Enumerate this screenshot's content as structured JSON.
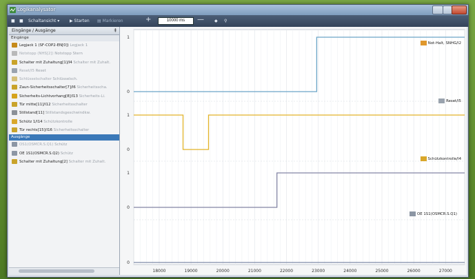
{
  "window": {
    "title": "Logikanalysator"
  },
  "toolbar": {
    "signal_menu": "Schaltansicht",
    "start_label": "Starten",
    "marker_label": "Markieren",
    "time_value": "10000 ms"
  },
  "sidebar": {
    "header": "Eingänge / Ausgänge",
    "groups": [
      {
        "label": "Eingänge",
        "items": [
          {
            "label": "Legjack 1 (SF-COP2-EN[0])",
            "sub": "Legjack 1",
            "icon": "warning-icon",
            "dim": false
          },
          {
            "label": "Notstopp (NHS[2])",
            "sub": "Notstopp Stern",
            "icon": "stop-icon",
            "dim": true
          },
          {
            "label": "Schalter mit Zuhaltung[1]/I4",
            "sub": "Schalter mit Zuhalt.",
            "icon": "switch-icon",
            "dim": false
          },
          {
            "label": "Reset/I5",
            "sub": "Reset",
            "icon": "reset-icon",
            "dim": true
          },
          {
            "label": "Schlüsselschalter",
            "sub": "Schlüsselsch.",
            "icon": "key-icon",
            "dim": true
          },
          {
            "label": "Zaun-Sicherheitsschalter[7]/I6",
            "sub": "Sicherheitsscha.",
            "icon": "switch-icon",
            "dim": false
          },
          {
            "label": "Sicherheits-Lichtvorhang[8]/I13",
            "sub": "Sicherheits-Li.",
            "icon": "curtain-icon",
            "dim": false
          },
          {
            "label": "Tür mitte[11]/I12",
            "sub": "Sicherheitsschalter",
            "icon": "switch-icon",
            "dim": false
          },
          {
            "label": "Stillstand[11]",
            "sub": "Stillstandsgeschwindkw.",
            "icon": "motion-icon",
            "dim": false
          },
          {
            "label": "Schütz 1/I14",
            "sub": "Schützkontrolle",
            "icon": "contactor-icon",
            "dim": false
          },
          {
            "label": "Tür rechts[15]/I16",
            "sub": "Sicherheitsschalter",
            "icon": "switch-icon",
            "dim": false
          }
        ]
      },
      {
        "label": "Ausgänge",
        "items": [
          {
            "label": "OS1(OSMCR.S.Q1)",
            "sub": "Schütz",
            "icon": "output-icon",
            "dim": true
          },
          {
            "label": "OE 1S1(OSMCR.S.Q2)",
            "sub": "Schütz",
            "icon": "output-icon",
            "dim": false
          },
          {
            "label": "Schalter mit Zuhaltung[2]",
            "sub": "Schalter mit Zuhalt.",
            "icon": "switch-icon",
            "dim": false
          }
        ]
      }
    ]
  },
  "chart_data": {
    "type": "line",
    "x_ticks": [
      18000,
      19000,
      20000,
      21000,
      22000,
      23000,
      24000,
      25000,
      26000,
      27000
    ],
    "xlim": [
      17200,
      27600
    ],
    "grid": true,
    "series": [
      {
        "name": "Not-Halt, SNHG/I2",
        "color": "#6aa5c7",
        "icon": "estop-icon",
        "points": [
          [
            17200,
            0
          ],
          [
            22950,
            0
          ],
          [
            22950,
            1
          ],
          [
            27600,
            1
          ]
        ]
      },
      {
        "name": "Reset/I5",
        "color": "#e2b227",
        "icon": "reset-icon",
        "points": [
          [
            17200,
            1
          ],
          [
            18750,
            1
          ],
          [
            18750,
            0
          ],
          [
            19550,
            0
          ],
          [
            19550,
            1
          ],
          [
            27600,
            1
          ]
        ]
      },
      {
        "name": "Schützkontrolle/I4",
        "color": "#8285a4",
        "icon": "contactor-icon",
        "points": [
          [
            17200,
            0
          ],
          [
            21700,
            0
          ],
          [
            21700,
            1
          ],
          [
            27600,
            1
          ]
        ]
      },
      {
        "name": "OE 1S1(OSMCR.S.Q1)",
        "color": "#7d8aa7",
        "icon": "output-icon",
        "points": [
          [
            17200,
            0
          ],
          [
            27600,
            0
          ]
        ]
      }
    ],
    "lane_ticks": [
      "1",
      "0"
    ]
  }
}
